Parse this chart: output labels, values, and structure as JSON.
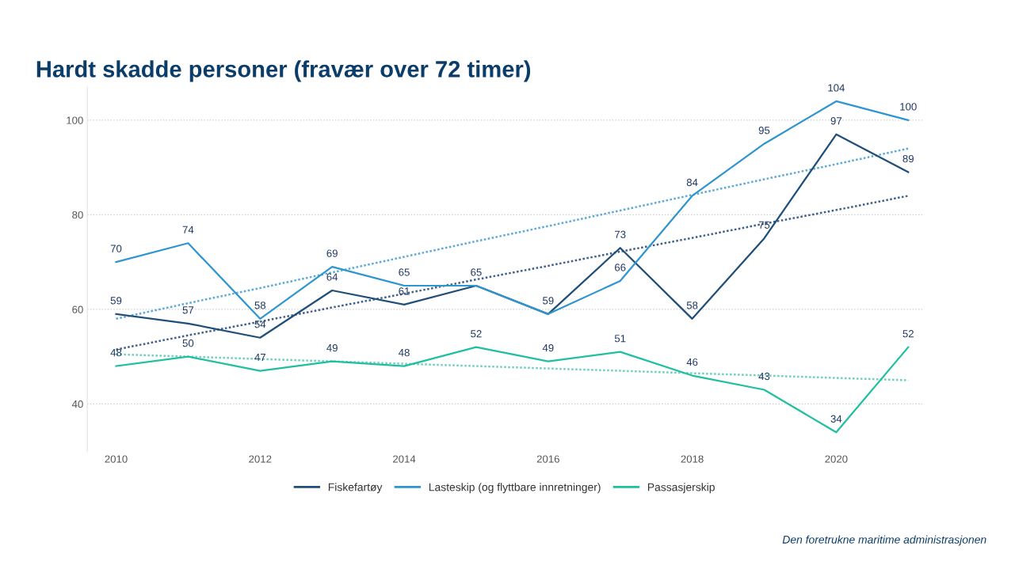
{
  "chart_data": {
    "type": "line",
    "title": "Hardt skadde personer (fravær over 72 timer)",
    "x": [
      2010,
      2011,
      2012,
      2013,
      2014,
      2015,
      2016,
      2017,
      2018,
      2019,
      2020,
      2021
    ],
    "series": [
      {
        "name": "Fiskefartøy",
        "color": "#1f4e79",
        "values": [
          59,
          57,
          54,
          64,
          61,
          65,
          59,
          73,
          58,
          75,
          97,
          89
        ],
        "value_labels": [
          "59",
          "57",
          "54",
          "64",
          "61",
          null,
          null,
          "73",
          "58",
          "75",
          "97",
          "89"
        ]
      },
      {
        "name": "Lasteskip (og flyttbare innretninger)",
        "color": "#2e95d0",
        "values": [
          70,
          74,
          58,
          69,
          65,
          65,
          59,
          66,
          84,
          95,
          104,
          100
        ],
        "value_labels": [
          "70",
          "74",
          "58",
          "69",
          "65",
          "65",
          "59",
          "66",
          "84",
          "95",
          "104",
          "100"
        ]
      },
      {
        "name": "Passasjerskip",
        "color": "#1fbfa0",
        "values": [
          48,
          50,
          47,
          49,
          48,
          52,
          49,
          51,
          46,
          43,
          34,
          52
        ],
        "value_labels": [
          "48",
          "50",
          "47",
          "49",
          "48",
          "52",
          "49",
          "51",
          "46",
          "43",
          "34",
          "52"
        ]
      },
      {
        "type": "line",
        "line_style": "dotted",
        "color": "#3f5f8a",
        "values": [
          51.5,
          54.5,
          57.4,
          60.4,
          63.3,
          66.3,
          69.2,
          72.2,
          75.1,
          78.1,
          81.0,
          84
        ]
      },
      {
        "type": "line",
        "line_style": "dotted",
        "color": "#5aaad8",
        "values": [
          58,
          61.3,
          64.5,
          67.8,
          71.1,
          74.4,
          77.6,
          80.9,
          84.2,
          87.5,
          90.7,
          94
        ]
      },
      {
        "type": "line",
        "line_style": "dotted",
        "color": "#6fd0bd",
        "values": [
          50.5,
          50,
          49.5,
          49,
          48.5,
          48,
          47.5,
          47,
          46.5,
          46,
          45.5,
          45
        ]
      }
    ],
    "xlim": [
      2009.6,
      2021.2
    ],
    "ylim": [
      30,
      107
    ],
    "xticks": [
      2010,
      2012,
      2014,
      2016,
      2018,
      2020
    ],
    "yticks": [
      40,
      60,
      80,
      100
    ],
    "grid": "y",
    "legend": "bottom",
    "marker": "none",
    "line_style": "solid",
    "annotations": [
      "Den foretrukne maritime administrasjonen"
    ]
  }
}
